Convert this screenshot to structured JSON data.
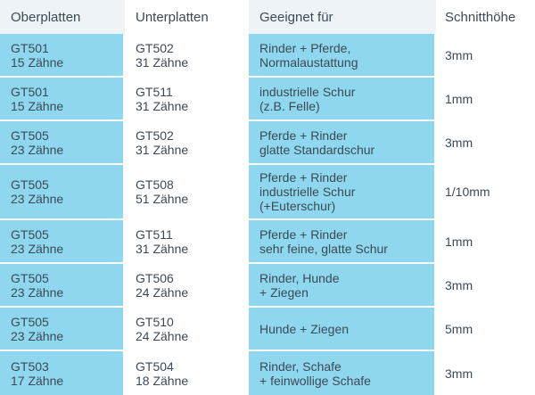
{
  "table": {
    "headers": [
      "Oberplatten",
      "Unterplatten",
      "Geeignet für",
      "Schnitthöhe"
    ],
    "rows": [
      {
        "ober": [
          "GT501",
          "15 Zähne"
        ],
        "unter": [
          "GT502",
          "31 Zähne"
        ],
        "geeignet": [
          "Rinder + Pferde,",
          "Normalaustattung"
        ],
        "hoehe": "3mm"
      },
      {
        "ober": [
          "GT501",
          "15 Zähne"
        ],
        "unter": [
          "GT511",
          "31 Zähne"
        ],
        "geeignet": [
          "industrielle Schur",
          "(z.B. Felle)"
        ],
        "hoehe": "1mm"
      },
      {
        "ober": [
          "GT505",
          "23 Zähne"
        ],
        "unter": [
          "GT502",
          "31 Zähne"
        ],
        "geeignet": [
          "Pferde + Rinder",
          "glatte Standardschur"
        ],
        "hoehe": "3mm"
      },
      {
        "ober": [
          "GT505",
          "23 Zähne"
        ],
        "unter": [
          "GT508",
          "51 Zähne"
        ],
        "geeignet": [
          "Pferde + Rinder",
          "industrielle Schur",
          "(+Euterschur)"
        ],
        "hoehe": "1/10mm"
      },
      {
        "ober": [
          "GT505",
          "23 Zähne"
        ],
        "unter": [
          "GT511",
          "31 Zähne"
        ],
        "geeignet": [
          "Pferde + Rinder",
          "sehr feine, glatte Schur"
        ],
        "hoehe": "1mm"
      },
      {
        "ober": [
          "GT505",
          "23 Zähne"
        ],
        "unter": [
          "GT506",
          "24 Zähne"
        ],
        "geeignet": [
          "Rinder, Hunde",
          "+ Ziegen"
        ],
        "hoehe": "3mm"
      },
      {
        "ober": [
          "GT505",
          "23 Zähne"
        ],
        "unter": [
          "GT510",
          "24 Zähne"
        ],
        "geeignet": [
          "Hunde + Ziegen"
        ],
        "hoehe": "5mm"
      },
      {
        "ober": [
          "GT503",
          "17 Zähne"
        ],
        "unter": [
          "GT504",
          "18 Zähne"
        ],
        "geeignet": [
          "Rinder, Schafe",
          "+ feinwollige Schafe"
        ],
        "hoehe": "3mm"
      }
    ]
  },
  "colors": {
    "cell_blue": "#8ed7ee",
    "header_shade": "#eef3f7",
    "text": "#3c4a57"
  }
}
